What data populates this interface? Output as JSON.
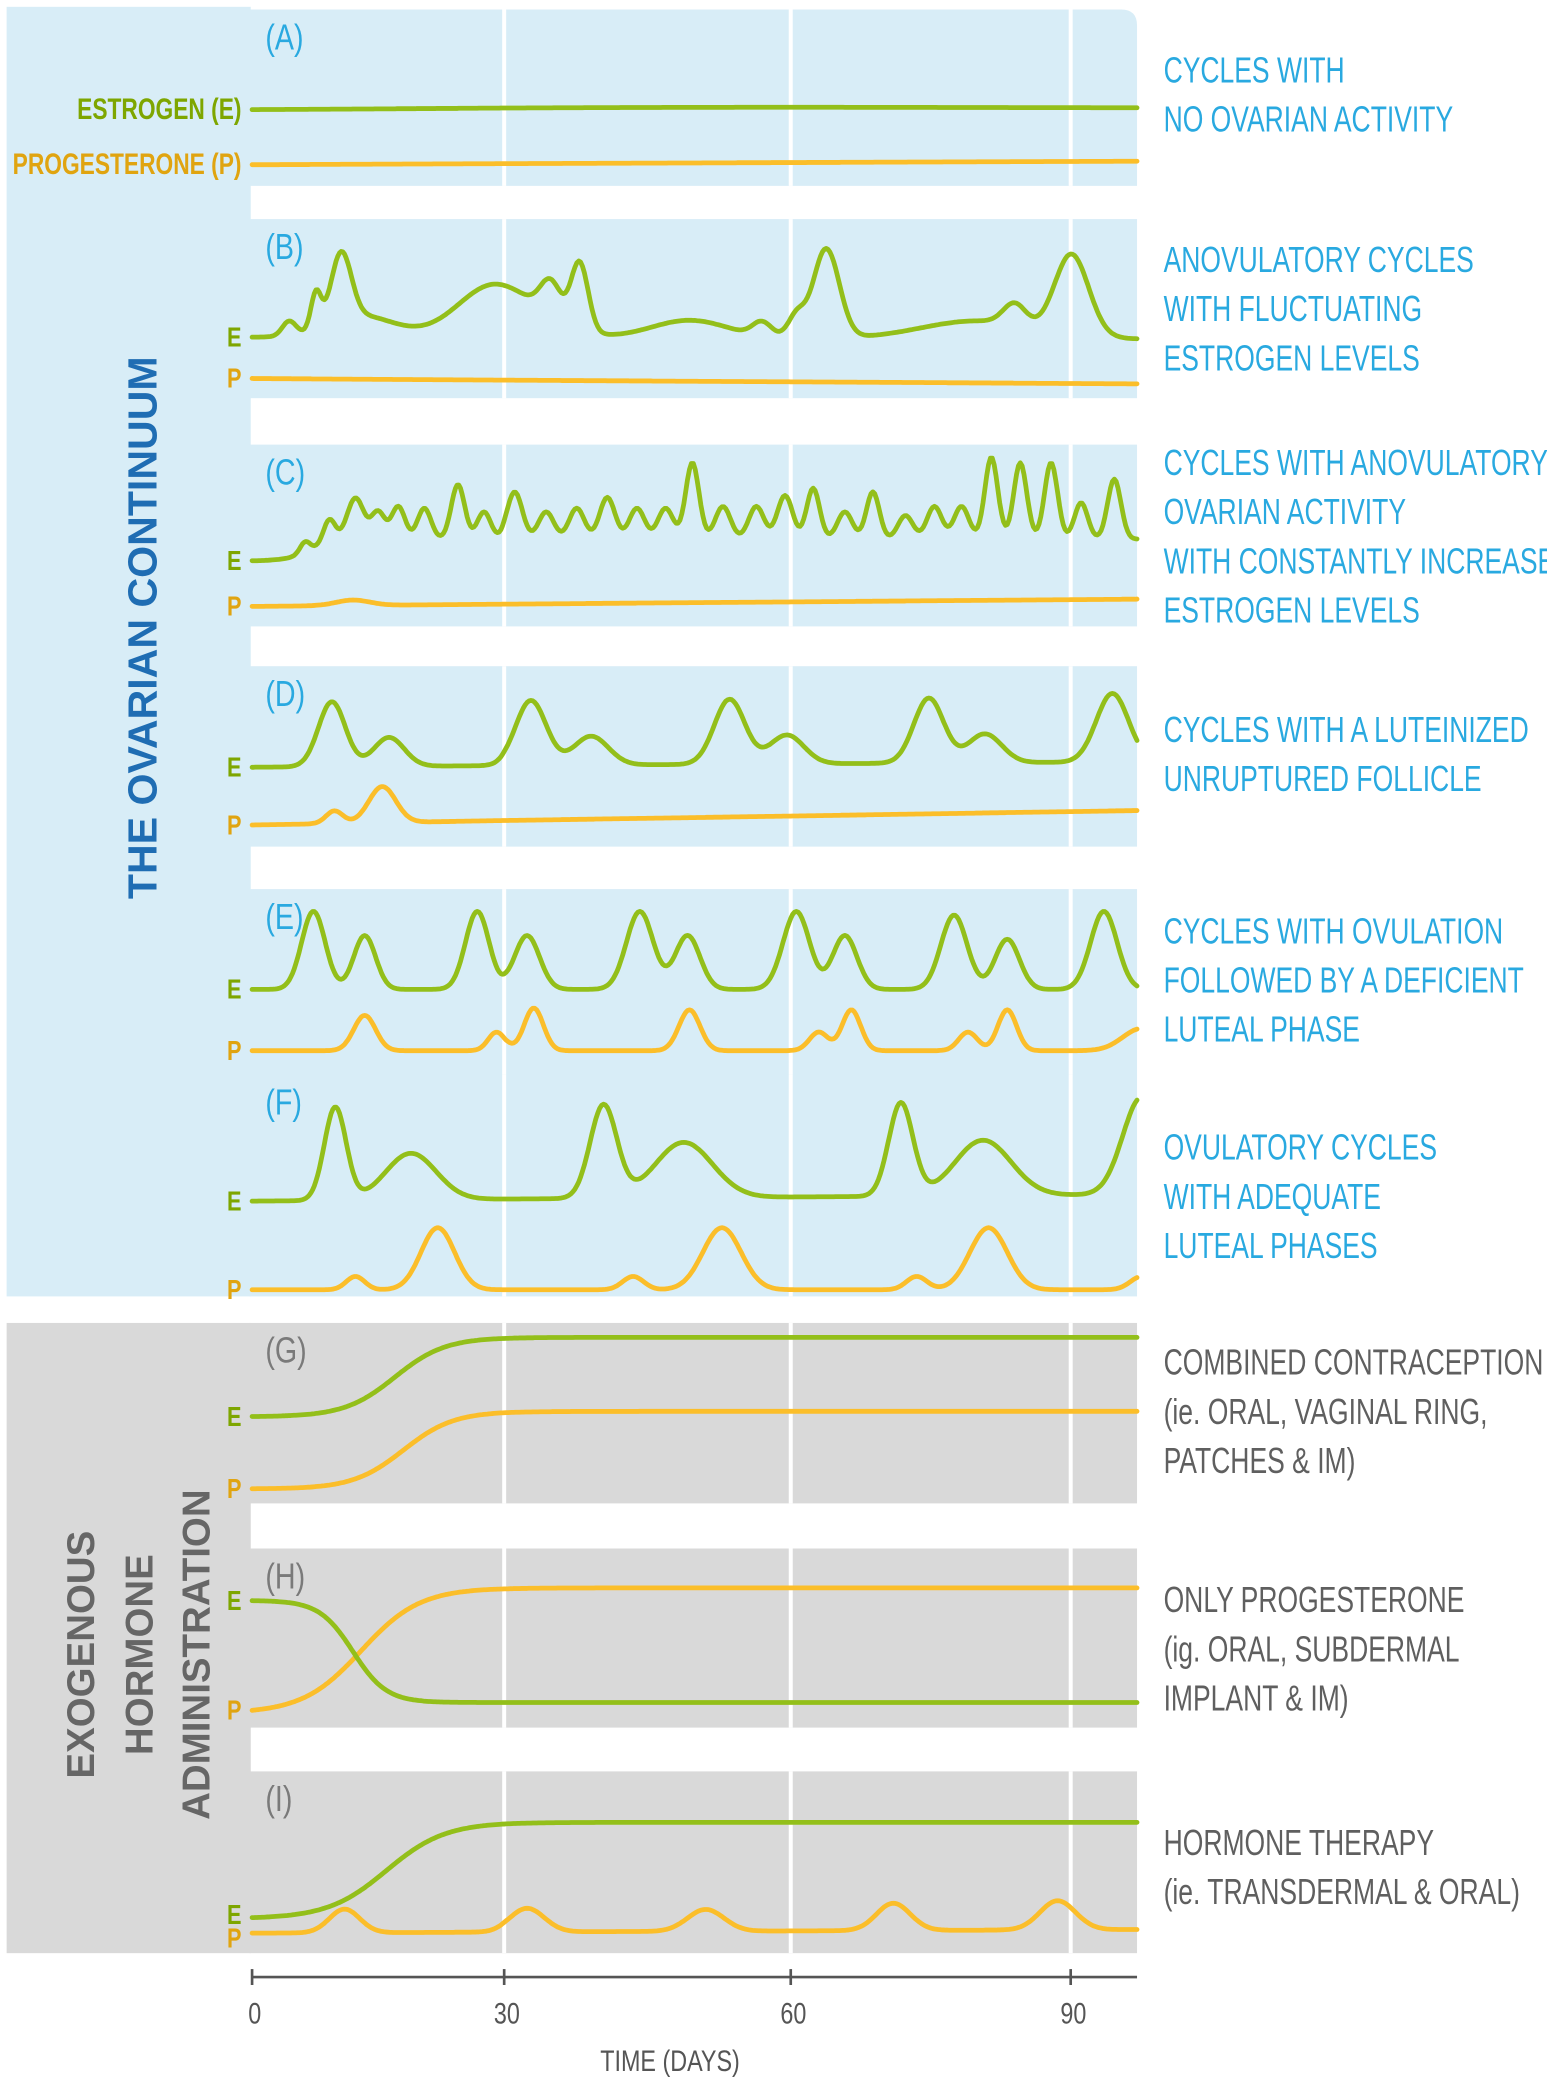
{
  "colors": {
    "blue_panel": "#d8edf7",
    "gray_panel": "#d9d9d9",
    "blue_text": "#29a9e0",
    "dark_blue": "#1f6db3",
    "gray_text": "#5f5f5f",
    "estrogen": "#93bf1a",
    "progesterone": "#fbbe2a",
    "estrogen_label": "#7ea600",
    "progesterone_label": "#e0a410"
  },
  "section_titles": {
    "ovarian": "THE OVARIAN CONTINUUM",
    "exogenous": [
      "EXOGENOUS",
      "HORMONE",
      "ADMINISTRATION"
    ]
  },
  "legend": {
    "estrogen": "ESTROGEN (E)",
    "progesterone": "PROGESTERONE (P)"
  },
  "chart_data": {
    "type": "line",
    "xlabel": "TIME (DAYS)",
    "xlim": [
      0,
      97
    ],
    "xticks": [
      0,
      30,
      60,
      90
    ],
    "xtick_labels": [
      "0",
      "30",
      "60",
      "90"
    ],
    "grid": "vertical lines at 30, 60, 90",
    "level_units": "relative hormone level within each panel (0 = bottom, 1 = top)",
    "panels": [
      {
        "letter": "(A)",
        "theme": "blue",
        "e_label": "ESTROGEN (E)",
        "p_label": "PROGESTERONE (P)",
        "description": [
          "CYCLES WITH",
          "NO OVARIAN ACTIVITY"
        ],
        "E": {
          "start": 0.43,
          "end": 0.44,
          "peaks": [
            [
              50,
              0.01,
              30
            ]
          ]
        },
        "P": {
          "start": 0.12,
          "end": 0.14,
          "peaks": []
        }
      },
      {
        "letter": "(B)",
        "theme": "blue",
        "e_label": "E",
        "p_label": "P",
        "description": [
          "ANOVULATORY CYCLES",
          "WITH FLUCTUATING",
          "ESTROGEN LEVELS"
        ],
        "E": {
          "start": 0.34,
          "end": 0.33,
          "peaks": [
            [
              4.4,
              0.08,
              0.8
            ],
            [
              7.6,
              0.2,
              0.6
            ],
            [
              10.6,
              0.38,
              1.2
            ],
            [
              13,
              0.12,
              4
            ],
            [
              29,
              0.3,
              4.5
            ],
            [
              34.9,
              0.2,
              1.1
            ],
            [
              37.9,
              0.38,
              0.9
            ],
            [
              49.4,
              0.1,
              4
            ],
            [
              57,
              0.08,
              1
            ],
            [
              60.6,
              0.12,
              0.9
            ],
            [
              63.8,
              0.5,
              1.4
            ],
            [
              80,
              0.1,
              6
            ],
            [
              84,
              0.12,
              1.2
            ],
            [
              90.1,
              0.45,
              1.8
            ]
          ]
        },
        "P": {
          "start": 0.11,
          "end": 0.08,
          "peaks": []
        }
      },
      {
        "letter": "(C)",
        "theme": "blue",
        "e_label": "E",
        "p_label": "P",
        "description": [
          "CYCLES WITH ANOVULATORY",
          "OVARIAN ACTIVITY",
          "WITH CONSTANTLY INCREASED",
          "ESTROGEN LEVELS"
        ],
        "E": {
          "start": 0.36,
          "end": 0.48,
          "sigmoid": [
            7,
            1.5
          ],
          "peaks": [
            [
              6.3,
              0.06,
              0.6
            ],
            [
              9.2,
              0.13,
              0.7
            ],
            [
              12.3,
              0.23,
              1
            ],
            [
              15,
              0.15,
              0.8
            ],
            [
              17.4,
              0.18,
              0.8
            ],
            [
              20.5,
              0.17,
              0.8
            ],
            [
              24.5,
              0.3,
              0.8
            ],
            [
              27.6,
              0.15,
              0.8
            ],
            [
              31.1,
              0.26,
              0.8
            ],
            [
              34.4,
              0.15,
              0.8
            ],
            [
              37.6,
              0.17,
              0.8
            ],
            [
              40.8,
              0.23,
              0.8
            ],
            [
              43.9,
              0.17,
              0.8
            ],
            [
              46.9,
              0.17,
              0.8
            ],
            [
              49.7,
              0.42,
              0.7
            ],
            [
              52.9,
              0.18,
              0.8
            ],
            [
              56.4,
              0.18,
              0.8
            ],
            [
              59.4,
              0.24,
              0.8
            ],
            [
              62.4,
              0.28,
              0.7
            ],
            [
              65.8,
              0.15,
              0.8
            ],
            [
              68.8,
              0.26,
              0.7
            ],
            [
              72.3,
              0.13,
              0.8
            ],
            [
              75.4,
              0.18,
              0.8
            ],
            [
              78.3,
              0.18,
              0.8
            ],
            [
              81.5,
              0.45,
              0.7
            ],
            [
              84.6,
              0.42,
              0.7
            ],
            [
              87.9,
              0.42,
              0.7
            ],
            [
              91.1,
              0.2,
              0.7
            ],
            [
              94.6,
              0.33,
              0.7
            ]
          ]
        },
        "P": {
          "start": 0.11,
          "end": 0.15,
          "peaks": [
            [
              12,
              0.03,
              2
            ]
          ]
        }
      },
      {
        "letter": "(D)",
        "theme": "blue",
        "e_label": "E",
        "p_label": "P",
        "description": [
          "CYCLES WITH A LUTEINIZED",
          "UNRUPTURED FOLLICLE"
        ],
        "E": {
          "start": 0.44,
          "end": 0.47,
          "peaks": [
            [
              9.5,
              0.36,
              1.6
            ],
            [
              16.3,
              0.16,
              1.8
            ],
            [
              32.8,
              0.36,
              1.6
            ],
            [
              39.1,
              0.16,
              1.8
            ],
            [
              53.6,
              0.36,
              1.6
            ],
            [
              59.6,
              0.16,
              1.8
            ],
            [
              74.8,
              0.36,
              1.6
            ],
            [
              80.8,
              0.16,
              1.8
            ],
            [
              94.4,
              0.38,
              1.7
            ]
          ]
        },
        "P": {
          "start": 0.12,
          "end": 0.2,
          "peaks": [
            [
              9.8,
              0.07,
              1
            ],
            [
              15.5,
              0.2,
              1.6
            ]
          ]
        }
      },
      {
        "letter": "(E)",
        "theme": "blue",
        "e_label": "E",
        "p_label": "P",
        "description": [
          "CYCLES WITH OVULATION",
          "FOLLOWED BY A DEFICIENT",
          "LUTEAL PHASE"
        ],
        "E": {
          "start": 0.46,
          "end": 0.46,
          "peaks": [
            [
              7.3,
              0.42,
              1.4
            ],
            [
              13.4,
              0.29,
              1.3
            ],
            [
              26.8,
              0.42,
              1.4
            ],
            [
              32.4,
              0.29,
              1.3
            ],
            [
              44.2,
              0.42,
              1.4
            ],
            [
              49.2,
              0.29,
              1.3
            ],
            [
              60.6,
              0.42,
              1.4
            ],
            [
              65.8,
              0.29,
              1.3
            ],
            [
              77.5,
              0.4,
              1.4
            ],
            [
              83.2,
              0.27,
              1.3
            ],
            [
              93.5,
              0.42,
              1.4
            ]
          ]
        },
        "P": {
          "start": 0.13,
          "end": 0.13,
          "peaks": [
            [
              13.4,
              0.19,
              1.3
            ],
            [
              29.1,
              0.1,
              1
            ],
            [
              33.1,
              0.23,
              1
            ],
            [
              49.4,
              0.22,
              1.1
            ],
            [
              63,
              0.1,
              1
            ],
            [
              66.5,
              0.22,
              1
            ],
            [
              79,
              0.1,
              1
            ],
            [
              83.2,
              0.22,
              1
            ],
            [
              97.5,
              0.12,
              2
            ]
          ]
        }
      },
      {
        "letter": "(F)",
        "theme": "blue",
        "e_label": "E",
        "p_label": "P",
        "description": [
          "OVULATORY CYCLES",
          "WITH ADEQUATE",
          "LUTEAL PHASES"
        ],
        "E": {
          "start": 0.43,
          "end": 0.46,
          "peaks": [
            [
              9.9,
              0.42,
              1.3
            ],
            [
              18.9,
              0.21,
              3
            ],
            [
              40.4,
              0.42,
              1.4
            ],
            [
              48.8,
              0.25,
              3
            ],
            [
              71.8,
              0.42,
              1.3
            ],
            [
              80.6,
              0.25,
              3
            ],
            [
              97.5,
              0.44,
              2
            ]
          ]
        },
        "P": {
          "start": 0.03,
          "end": 0.03,
          "peaks": [
            [
              12.3,
              0.06,
              1.1
            ],
            [
              22.1,
              0.28,
              2
            ],
            [
              43.5,
              0.06,
              1.1
            ],
            [
              52.8,
              0.28,
              2
            ],
            [
              73.5,
              0.06,
              1.1
            ],
            [
              81.2,
              0.28,
              2
            ],
            [
              97.5,
              0.06,
              1.2
            ]
          ]
        }
      },
      {
        "letter": "(G)",
        "theme": "gray",
        "e_label": "E",
        "p_label": "P",
        "description": [
          "COMBINED CONTRACEPTION",
          "(ie. ORAL,  VAGINAL RING,",
          "PATCHES & IM)"
        ],
        "E": {
          "start": 0.48,
          "end": 0.92,
          "sigmoid": [
            17,
            3
          ],
          "peaks": []
        },
        "P": {
          "start": 0.08,
          "end": 0.51,
          "sigmoid": [
            18,
            3
          ],
          "peaks": []
        }
      },
      {
        "letter": "(H)",
        "theme": "gray",
        "e_label": "E",
        "p_label": "P",
        "description": [
          "ONLY PROGESTERONE",
          "(ig. ORAL, SUBDERMAL",
          "IMPLANT & IM)"
        ],
        "E": {
          "start": 0.71,
          "end": 0.14,
          "sigmoid": [
            12,
            2
          ],
          "peaks": []
        },
        "P": {
          "start": 0.08,
          "end": 0.78,
          "sigmoid": [
            13,
            3.5
          ],
          "peaks": []
        }
      },
      {
        "letter": "(I)",
        "theme": "gray",
        "e_label": "E",
        "p_label": "P",
        "description": [
          "HORMONE THERAPY",
          "(ie. TRANSDERMAL & ORAL)"
        ],
        "E": {
          "start": 0.19,
          "end": 0.72,
          "sigmoid": [
            16,
            3.5
          ],
          "peaks": []
        },
        "P": {
          "start": 0.11,
          "end": 0.13,
          "peaks": [
            [
              11,
              0.13,
              1.8
            ],
            [
              32.4,
              0.13,
              1.8
            ],
            [
              51.1,
              0.12,
              1.9
            ],
            [
              71,
              0.15,
              1.8
            ],
            [
              88.6,
              0.16,
              1.9
            ]
          ]
        }
      }
    ]
  }
}
